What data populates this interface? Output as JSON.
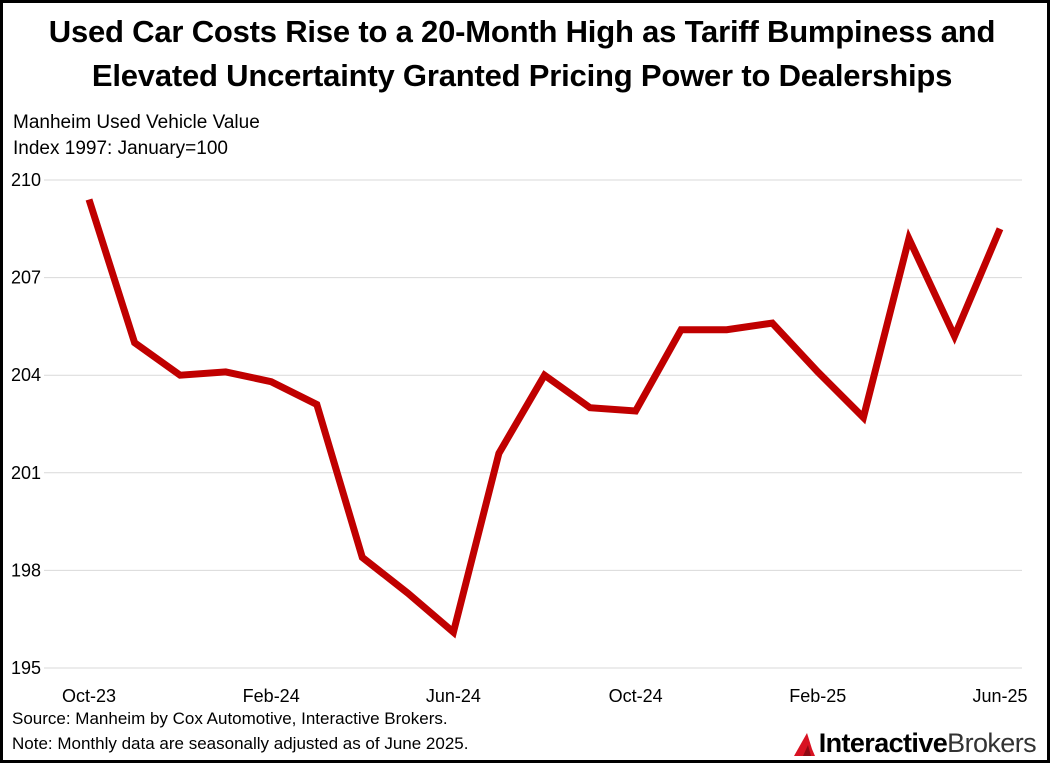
{
  "chart_data": {
    "type": "line",
    "title_lines": [
      "Used Car Costs Rise to a 20-Month High as Tariff Bumpiness and",
      "Elevated Uncertainty Granted Pricing Power to Dealerships"
    ],
    "ylabel_lines": [
      "Manheim Used Vehicle Value",
      "Index 1997: January=100"
    ],
    "x": [
      "Oct-23",
      "Nov-23",
      "Dec-23",
      "Jan-24",
      "Feb-24",
      "Mar-24",
      "Apr-24",
      "May-24",
      "Jun-24",
      "Jul-24",
      "Aug-24",
      "Sep-24",
      "Oct-24",
      "Nov-24",
      "Dec-24",
      "Jan-25",
      "Feb-25",
      "Mar-25",
      "Apr-25",
      "May-25",
      "Jun-25"
    ],
    "x_tick_labels": [
      "Oct-23",
      "Feb-24",
      "Jun-24",
      "Oct-24",
      "Feb-25",
      "Jun-25"
    ],
    "series": [
      {
        "name": "Manheim Used Vehicle Value Index",
        "color": "#c00000",
        "values": [
          209.4,
          205.0,
          204.0,
          204.1,
          203.8,
          203.1,
          198.4,
          197.3,
          196.1,
          201.6,
          204.0,
          203.0,
          202.9,
          205.4,
          205.4,
          205.6,
          204.1,
          202.7,
          208.2,
          205.2,
          208.5
        ]
      }
    ],
    "yticks": [
      195,
      198,
      201,
      204,
      207,
      210
    ],
    "ylim": [
      195,
      210
    ],
    "grid": true,
    "legend": "none"
  },
  "source_note": "Source: Manheim by Cox Automotive,  Interactive Brokers.",
  "note": "Note: Monthly data are seasonally adjusted as of June 2025.",
  "brand": {
    "name_part1": "Interactive",
    "name_part2": "Brokers",
    "accent": "#d81222"
  }
}
